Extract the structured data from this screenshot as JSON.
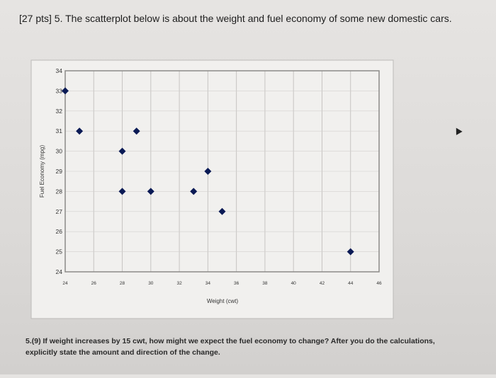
{
  "question": {
    "header": "[27 pts] 5. The scatterplot below is about the weight and fuel economy of some new domestic cars."
  },
  "footer": {
    "text": "5.(9) If weight increases by 15 cwt, how might we expect the fuel economy to change? After you do the calculations, explicitly state the amount and direction of the change."
  },
  "chart_data": {
    "type": "scatter",
    "xlabel": "Weight (cwt)",
    "ylabel": "Fuel Economy (mpg)",
    "xlim": [
      24,
      46
    ],
    "ylim": [
      24,
      34
    ],
    "xticks": [
      24,
      26,
      28,
      30,
      32,
      34,
      36,
      38,
      40,
      42,
      44,
      46
    ],
    "yticks": [
      24,
      25,
      26,
      27,
      28,
      29,
      30,
      31,
      32,
      33,
      34
    ],
    "grid": true,
    "marker": "diamond",
    "marker_color": "#0a1a55",
    "points": [
      {
        "x": 24,
        "y": 33
      },
      {
        "x": 25,
        "y": 31
      },
      {
        "x": 28,
        "y": 30
      },
      {
        "x": 29,
        "y": 31
      },
      {
        "x": 28,
        "y": 28
      },
      {
        "x": 30,
        "y": 28
      },
      {
        "x": 33,
        "y": 28
      },
      {
        "x": 34,
        "y": 29
      },
      {
        "x": 35,
        "y": 27
      },
      {
        "x": 44,
        "y": 25
      }
    ]
  }
}
